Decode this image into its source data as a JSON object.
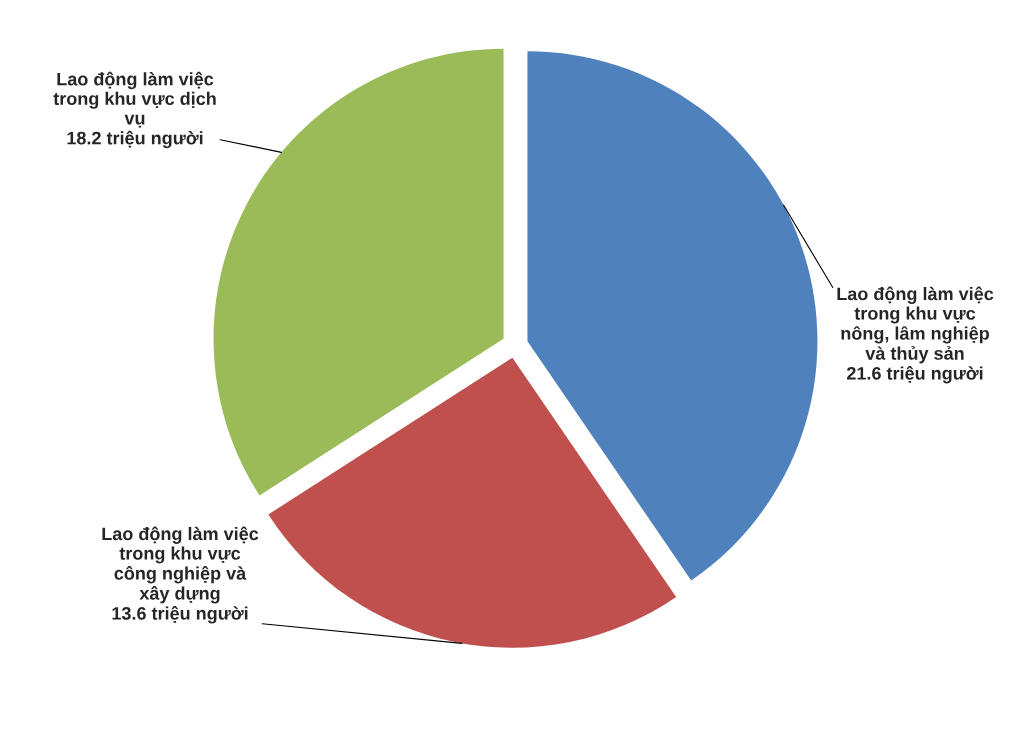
{
  "chart_data": {
    "type": "pie",
    "categories": [
      "Lao động làm việc\ntrong khu vực\nnông, lâm nghiệp\nvà thủy sản",
      "Lao động làm việc\ntrong khu vực\ncông nghiệp và\nxây dựng",
      "Lao động làm việc\ntrong khu vực dịch\nvụ"
    ],
    "values": [
      21.6,
      13.6,
      18.2
    ],
    "colors": [
      "#4f81bd",
      "#c0504d",
      "#9bbb59"
    ],
    "value_labels": [
      "21.6 triệu người",
      "13.6 triệu người",
      "18.2 triệu người"
    ]
  }
}
